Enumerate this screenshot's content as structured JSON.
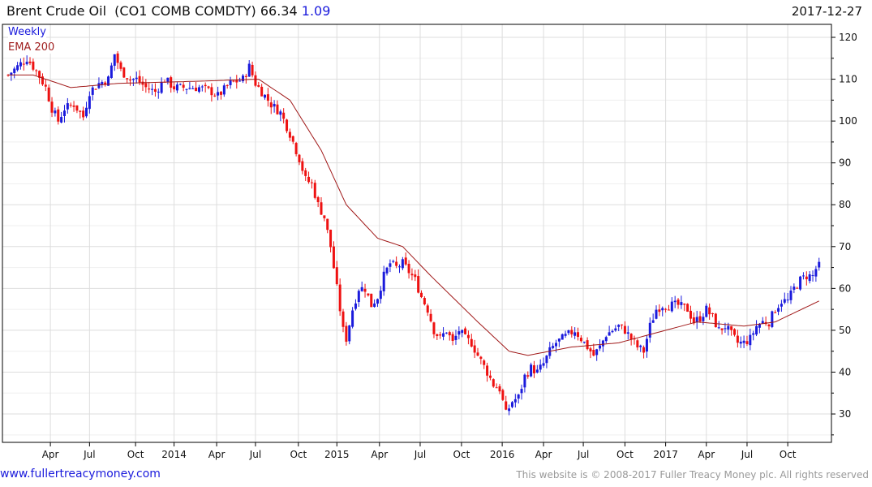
{
  "header": {
    "title": "Brent Crude Oil  (CO1 COMB COMDTY)",
    "last": "66.34",
    "change": "1.09",
    "date": "2017-12-27"
  },
  "legend": {
    "weekly": "Weekly",
    "ema": "EMA 200"
  },
  "footer": {
    "site": "www.fullertreacymoney.com",
    "copyright": "This website is © 2008-2017 Fuller Treacy Money plc. All rights reserved"
  },
  "colors": {
    "up": "#1a1adc",
    "down": "#ee1111",
    "ema": "#a01818",
    "grid": "#dddddd"
  },
  "chart_data": {
    "type": "candlestick",
    "title": "Brent Crude Oil (CO1 COMB COMDTY)",
    "frequency": "weekly",
    "ylim": [
      24,
      123
    ],
    "yticks": [
      30,
      40,
      50,
      60,
      70,
      80,
      90,
      100,
      110,
      120
    ],
    "xticks": [
      {
        "label": "Apr",
        "week": 13.5
      },
      {
        "label": "Jul",
        "week": 26
      },
      {
        "label": "Oct",
        "week": 40.7
      },
      {
        "label": "2014",
        "week": 53
      },
      {
        "label": "Apr",
        "week": 66.6
      },
      {
        "label": "Jul",
        "week": 79
      },
      {
        "label": "Oct",
        "week": 92.7
      },
      {
        "label": "2015",
        "week": 105
      },
      {
        "label": "Apr",
        "week": 118.6
      },
      {
        "label": "Jul",
        "week": 131.6
      },
      {
        "label": "Oct",
        "week": 144.8
      },
      {
        "label": "2016",
        "week": 157.8
      },
      {
        "label": "Apr",
        "week": 171
      },
      {
        "label": "Jul",
        "week": 183.7
      },
      {
        "label": "Oct",
        "week": 197
      },
      {
        "label": "2017",
        "week": 210
      },
      {
        "label": "Apr",
        "week": 223
      },
      {
        "label": "Jul",
        "week": 236
      },
      {
        "label": "Oct",
        "week": 249
      }
    ],
    "weeks_total": 260,
    "close_keypoints": [
      [
        0,
        111
      ],
      [
        3,
        113
      ],
      [
        6,
        115
      ],
      [
        9,
        112
      ],
      [
        12,
        108
      ],
      [
        14,
        103
      ],
      [
        16,
        100
      ],
      [
        18,
        103
      ],
      [
        21,
        104
      ],
      [
        24,
        101
      ],
      [
        26,
        107
      ],
      [
        29,
        109
      ],
      [
        32,
        110
      ],
      [
        34,
        116
      ],
      [
        36,
        112
      ],
      [
        39,
        110
      ],
      [
        41,
        110
      ],
      [
        44,
        108
      ],
      [
        47,
        107
      ],
      [
        50,
        110
      ],
      [
        53,
        108
      ],
      [
        57,
        108
      ],
      [
        61,
        108
      ],
      [
        65,
        107
      ],
      [
        67,
        106
      ],
      [
        71,
        109
      ],
      [
        75,
        110
      ],
      [
        77,
        113
      ],
      [
        79,
        109
      ],
      [
        81,
        107
      ],
      [
        84,
        104
      ],
      [
        87,
        102
      ],
      [
        90,
        97
      ],
      [
        93,
        91
      ],
      [
        95,
        86
      ],
      [
        97,
        85
      ],
      [
        99,
        80
      ],
      [
        101,
        77
      ],
      [
        103,
        70
      ],
      [
        105,
        60
      ],
      [
        107,
        50
      ],
      [
        108,
        48
      ],
      [
        110,
        55
      ],
      [
        112,
        60
      ],
      [
        114,
        60
      ],
      [
        116,
        56
      ],
      [
        118,
        58
      ],
      [
        120,
        63
      ],
      [
        122,
        66
      ],
      [
        124,
        65
      ],
      [
        126,
        66
      ],
      [
        128,
        64
      ],
      [
        130,
        62
      ],
      [
        132,
        58
      ],
      [
        134,
        55
      ],
      [
        136,
        50
      ],
      [
        138,
        48
      ],
      [
        140,
        50
      ],
      [
        142,
        47
      ],
      [
        144,
        50
      ],
      [
        146,
        48
      ],
      [
        148,
        47
      ],
      [
        150,
        44
      ],
      [
        153,
        40
      ],
      [
        155,
        37
      ],
      [
        157,
        36
      ],
      [
        159,
        30
      ],
      [
        161,
        33
      ],
      [
        163,
        34
      ],
      [
        165,
        39
      ],
      [
        167,
        41
      ],
      [
        169,
        40
      ],
      [
        171,
        42
      ],
      [
        173,
        45
      ],
      [
        175,
        47
      ],
      [
        177,
        48
      ],
      [
        179,
        49
      ],
      [
        181,
        50
      ],
      [
        183,
        48
      ],
      [
        185,
        46
      ],
      [
        187,
        44
      ],
      [
        189,
        46
      ],
      [
        191,
        49
      ],
      [
        193,
        50
      ],
      [
        195,
        51
      ],
      [
        197,
        50
      ],
      [
        199,
        48
      ],
      [
        201,
        46
      ],
      [
        203,
        45
      ],
      [
        205,
        51
      ],
      [
        207,
        55
      ],
      [
        209,
        56
      ],
      [
        211,
        56
      ],
      [
        214,
        56
      ],
      [
        217,
        55
      ],
      [
        219,
        52
      ],
      [
        221,
        53
      ],
      [
        223,
        55
      ],
      [
        225,
        53
      ],
      [
        227,
        50
      ],
      [
        229,
        51
      ],
      [
        231,
        49
      ],
      [
        233,
        47
      ],
      [
        235,
        47
      ],
      [
        237,
        48
      ],
      [
        239,
        51
      ],
      [
        241,
        52
      ],
      [
        243,
        52
      ],
      [
        245,
        55
      ],
      [
        247,
        57
      ],
      [
        249,
        57
      ],
      [
        251,
        60
      ],
      [
        253,
        62
      ],
      [
        255,
        63
      ],
      [
        257,
        63
      ],
      [
        259,
        66.34
      ]
    ],
    "ema_keypoints": [
      [
        0,
        111
      ],
      [
        8,
        111
      ],
      [
        20,
        108
      ],
      [
        35,
        109
      ],
      [
        60,
        109.5
      ],
      [
        80,
        110
      ],
      [
        90,
        105
      ],
      [
        100,
        93
      ],
      [
        108,
        80
      ],
      [
        118,
        72
      ],
      [
        126,
        70
      ],
      [
        135,
        63
      ],
      [
        150,
        52
      ],
      [
        160,
        45
      ],
      [
        166,
        44
      ],
      [
        180,
        46
      ],
      [
        195,
        47
      ],
      [
        210,
        50
      ],
      [
        220,
        52
      ],
      [
        235,
        51
      ],
      [
        245,
        52
      ],
      [
        259,
        57
      ]
    ]
  }
}
